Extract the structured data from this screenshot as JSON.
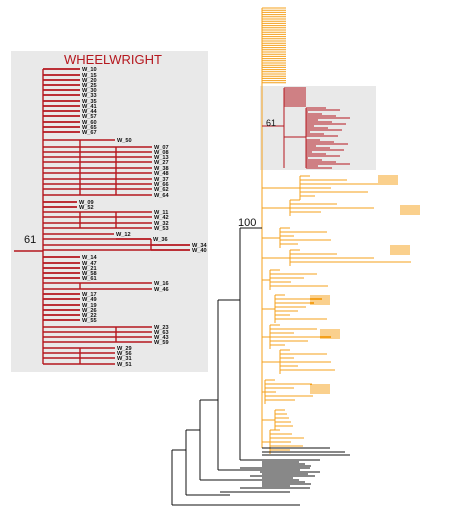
{
  "inset": {
    "title": "WHEELWRIGHT",
    "support_label": "61",
    "leaf_labels": [
      "W_10",
      "W_15",
      "W_20",
      "W_25",
      "W_30",
      "W_33",
      "W_35",
      "W_41",
      "W_44",
      "W_57",
      "W_60",
      "W_65",
      "W_67",
      "W_50",
      "W_07",
      "W_08",
      "W_13",
      "W_27",
      "W_38",
      "W_48",
      "W_37",
      "W_66",
      "W_62",
      "W_64",
      "W_09",
      "W_52",
      "W_11",
      "W_42",
      "W_32",
      "W_53",
      "W_12",
      "W_36",
      "W_34",
      "W_40",
      "W_14",
      "W_47",
      "W_21",
      "W_58",
      "W_61",
      "W_16",
      "W_46",
      "W_17",
      "W_49",
      "W_19",
      "W_26",
      "W_22",
      "W_55",
      "W_23",
      "W_63",
      "W_43",
      "W_59",
      "W_29",
      "W_56",
      "W_31",
      "W_51"
    ]
  },
  "main_tree": {
    "support_labels": [
      "100",
      "61"
    ]
  },
  "colors": {
    "wheelwright": "#b5171e",
    "orange_clade": "#f4a01b",
    "outgroup": "#111111",
    "highlight_box": "#e9e9e9"
  }
}
